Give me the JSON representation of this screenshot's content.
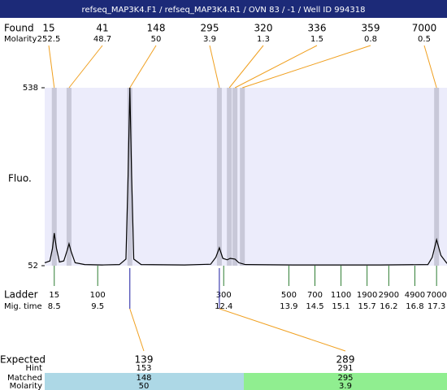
{
  "chart_data": {
    "type": "electropherogram",
    "title": "refseq_MAP3K4.F1 / refseq_MAP3K4.R1 / OVN 83 / -1 / Well ID 994318",
    "ylabel": "Fluo.",
    "ylim": [
      52,
      538
    ],
    "yticks": [
      52,
      538
    ],
    "xlim": [
      8.28,
      17.54
    ],
    "found": {
      "label": "Found",
      "molarity_label": "Molarity",
      "sizes": [
        15,
        41,
        148,
        295,
        320,
        336,
        359,
        7000
      ],
      "molarity": [
        252.5,
        48.7,
        50,
        3.9,
        1.3,
        1.5,
        0.8,
        0.5
      ],
      "x": [
        8.5,
        8.84,
        10.24,
        12.3,
        12.53,
        12.66,
        12.83,
        17.3
      ]
    },
    "ladder": {
      "label": "Ladder",
      "time_label": "Mig. time",
      "sizes": [
        15,
        100,
        300,
        500,
        700,
        1100,
        1900,
        2900,
        4900,
        7000
      ],
      "x": [
        8.5,
        9.5,
        12.4,
        13.9,
        14.5,
        15.1,
        15.7,
        16.2,
        16.8,
        17.3
      ]
    },
    "trace": {
      "x": [
        8.28,
        8.4,
        8.46,
        8.5,
        8.55,
        8.62,
        8.72,
        8.8,
        8.84,
        8.89,
        8.98,
        9.2,
        9.6,
        10.0,
        10.15,
        10.2,
        10.24,
        10.28,
        10.33,
        10.5,
        11.5,
        12.1,
        12.22,
        12.3,
        12.38,
        12.48,
        12.55,
        12.66,
        12.75,
        12.9,
        14,
        16,
        17.1,
        17.2,
        17.3,
        17.4,
        17.54
      ],
      "values": [
        60,
        65,
        100,
        141,
        100,
        62,
        65,
        95,
        112,
        90,
        60,
        55,
        54,
        55,
        70,
        300,
        538,
        300,
        70,
        55,
        54,
        56,
        75,
        101,
        72,
        68,
        72,
        70,
        60,
        55,
        54,
        54,
        55,
        75,
        123,
        80,
        58
      ]
    },
    "expected": {
      "label": "Expected",
      "hint_label": "Hint",
      "matched_label": "Matched",
      "molarity_label": "Molarity",
      "items": [
        {
          "expected": 139,
          "hint": 153,
          "matched": 148,
          "molarity": 50
        },
        {
          "expected": 289,
          "hint": 291,
          "matched": 295,
          "molarity": 3.9
        }
      ]
    }
  }
}
